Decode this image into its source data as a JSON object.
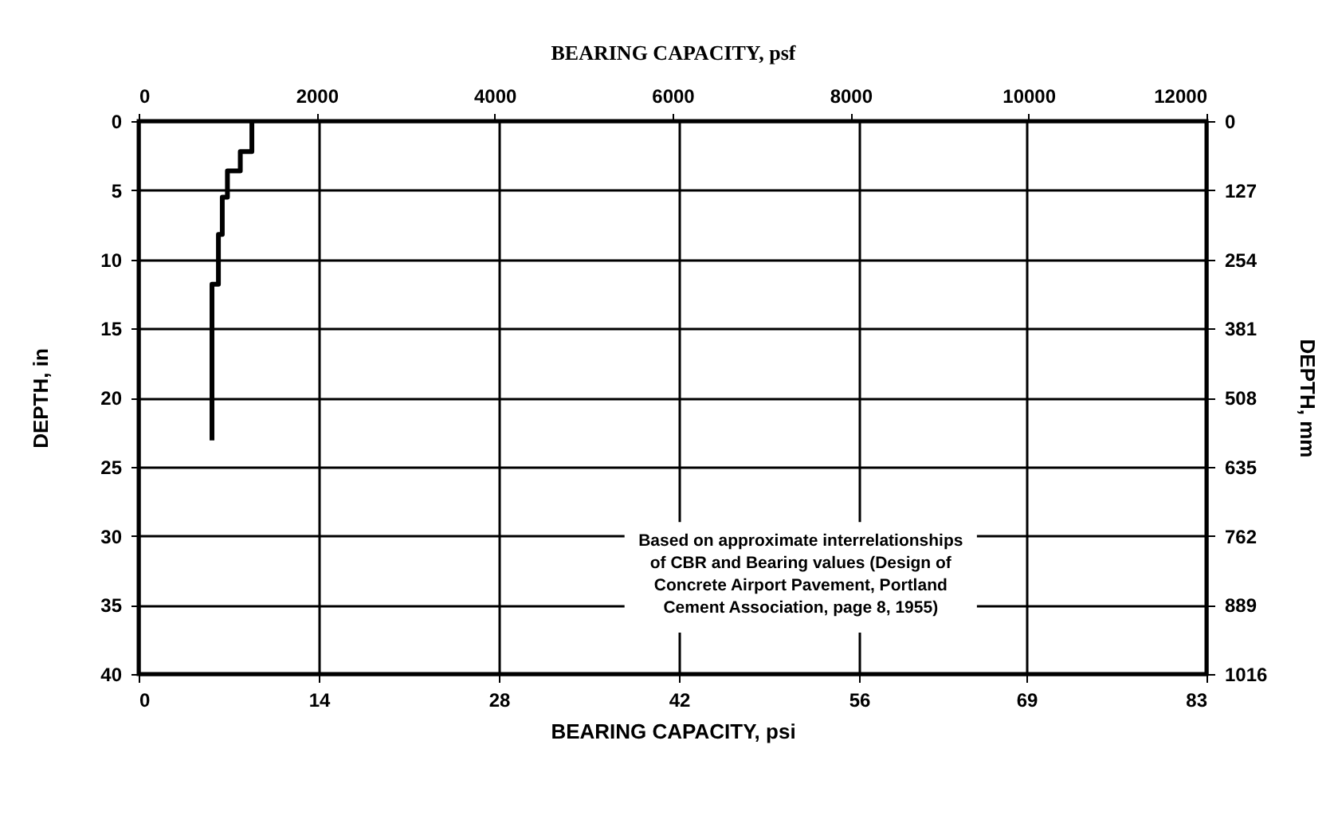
{
  "chart_data": {
    "type": "line",
    "xlabel": "BEARING CAPACITY, psi",
    "x2label": "BEARING CAPACITY, psf",
    "ylabel": "DEPTH, in",
    "y2label": "DEPTH, mm",
    "annotations": [
      "Based on approximate interrelationships\nof CBR and Bearing values (Design of\nConcrete Airport Pavement, Portland\nCement Association, page 8, 1955)"
    ],
    "series": [
      {
        "color": "#000000",
        "x": [
          8.8,
          8.8,
          7.9,
          7.9,
          6.9,
          6.9,
          6.5,
          6.5,
          6.2,
          6.2,
          5.7,
          5.7
        ],
        "values": [
          0,
          2.2,
          2.2,
          3.6,
          3.6,
          5.5,
          5.5,
          8.2,
          8.2,
          11.8,
          11.8,
          23.1
        ]
      }
    ],
    "xlim": [
      0,
      83
    ],
    "xticks": [
      0,
      14,
      28,
      42,
      56,
      69,
      83
    ],
    "x2lim": [
      0,
      12000
    ],
    "x2ticks": [
      0,
      2000,
      4000,
      6000,
      8000,
      10000,
      12000
    ],
    "ylim": [
      40,
      0
    ],
    "yticks": [
      0,
      5,
      10,
      15,
      20,
      25,
      30,
      35,
      40
    ],
    "y2lim": [
      1016,
      0
    ],
    "y2ticks": [
      0,
      127,
      254,
      381,
      508,
      635,
      762,
      889,
      1016
    ],
    "grid": true,
    "marker": "none",
    "line_style": "solid"
  }
}
